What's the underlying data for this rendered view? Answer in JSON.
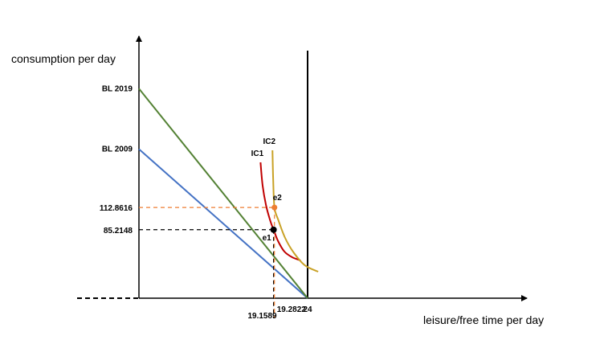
{
  "chart_data": {
    "type": "line",
    "ylabel": "consumption per day",
    "xlabel": "leisure/free time per day",
    "xlim": [
      0,
      24
    ],
    "x_ticks": [
      "19.1589",
      "19.2822",
      "24"
    ],
    "y_ticks": [
      "85.2148",
      "112.8616"
    ],
    "series": [
      {
        "name": "BL 2009",
        "color": "#4472C4",
        "x": [
          0,
          24
        ],
        "y": [
          185.5,
          0
        ]
      },
      {
        "name": "BL 2019",
        "color": "#548235",
        "x": [
          0,
          24
        ],
        "y": [
          260.7,
          0
        ]
      },
      {
        "name": "IC1",
        "color": "#C00000",
        "x": [
          17.3,
          17.6,
          18.1,
          18.7,
          19.1589,
          19.8,
          20.7,
          21.8,
          23.0
        ],
        "y": [
          169,
          140,
          115,
          96,
          85.2148,
          71,
          58,
          51,
          47
        ]
      },
      {
        "name": "IC2",
        "color": "#C9A227",
        "x": [
          19.0,
          19.1,
          19.2822,
          19.8,
          20.8,
          22.0,
          23.6,
          25.5
        ],
        "y": [
          184,
          148,
          112.8616,
          98,
          75,
          57,
          41,
          33
        ]
      }
    ],
    "points": [
      {
        "label": "e1",
        "x": 19.1589,
        "y": 85.2148,
        "color": "#000000"
      },
      {
        "label": "e2",
        "x": 19.2822,
        "y": 112.8616,
        "color": "#ED7D31"
      }
    ],
    "grid": false,
    "legend": "none"
  }
}
